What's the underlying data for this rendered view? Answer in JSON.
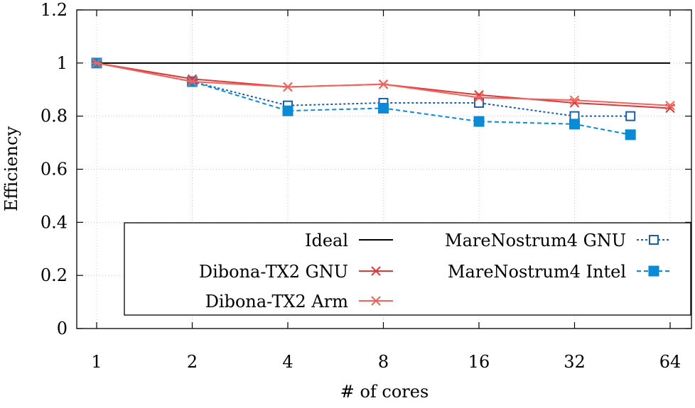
{
  "chart_data": {
    "type": "line",
    "title": "",
    "xlabel": "# of cores",
    "ylabel": "Efficiency",
    "x_scale": "log2",
    "x_ticks": [
      1,
      2,
      4,
      8,
      16,
      32,
      64
    ],
    "x_tick_labels": [
      "1",
      "2",
      "4",
      "8",
      "16",
      "32",
      "64"
    ],
    "xlim": [
      1,
      64
    ],
    "ylim": [
      0,
      1.2
    ],
    "y_ticks": [
      0,
      0.2,
      0.4,
      0.6,
      0.8,
      1,
      1.2
    ],
    "y_tick_labels": [
      "0",
      "0.2",
      "0.4",
      "0.6",
      "0.8",
      "1",
      "1.2"
    ],
    "grid": true,
    "legend_position": "bottom-right",
    "series": [
      {
        "name": "Ideal",
        "color": "#000000",
        "line_style": "solid",
        "marker": "none",
        "x": [
          1,
          64
        ],
        "values": [
          1,
          1
        ]
      },
      {
        "name": "Dibona-TX2 GNU",
        "color": "#d93a3a",
        "line_style": "solid",
        "marker": "x",
        "x": [
          1,
          2,
          4,
          8,
          16,
          32,
          64
        ],
        "values": [
          1,
          0.94,
          0.91,
          0.92,
          0.88,
          0.85,
          0.83
        ]
      },
      {
        "name": "Dibona-TX2 Arm",
        "color": "#f0645e",
        "line_style": "solid",
        "marker": "asterisk",
        "x": [
          1,
          2,
          4,
          8,
          16,
          32,
          64
        ],
        "values": [
          1,
          0.93,
          0.91,
          0.92,
          0.87,
          0.86,
          0.84
        ]
      },
      {
        "name": "MareNostrum4 GNU",
        "color": "#1a5fa8",
        "line_style": "dotted",
        "marker": "open-square",
        "x": [
          1,
          2,
          4,
          8,
          16,
          32,
          48
        ],
        "values": [
          1,
          0.93,
          0.84,
          0.85,
          0.85,
          0.8,
          0.8
        ]
      },
      {
        "name": "MareNostrum4 Intel",
        "color": "#0b8ad6",
        "line_style": "dashed",
        "marker": "filled-square",
        "x": [
          1,
          2,
          4,
          8,
          16,
          32,
          48
        ],
        "values": [
          1,
          0.93,
          0.82,
          0.83,
          0.78,
          0.77,
          0.73
        ]
      }
    ]
  }
}
